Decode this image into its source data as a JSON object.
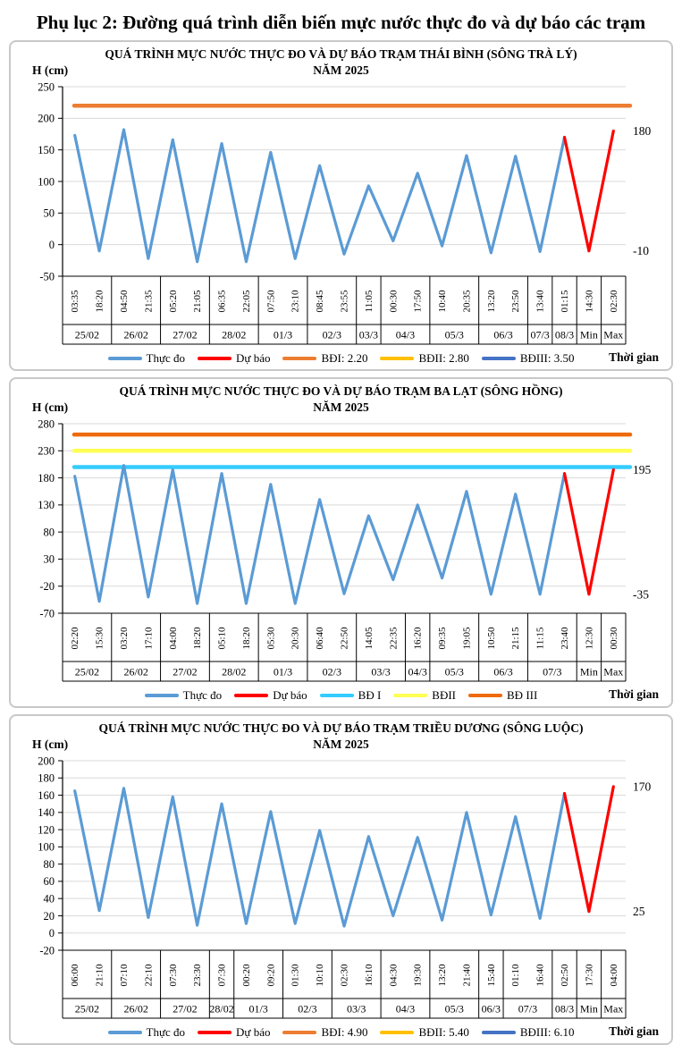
{
  "page_title": "Phụ lục 2: Đường quá trình diễn biến mực nước thực đo và dự báo các trạm",
  "chart_data": [
    {
      "type": "line",
      "title": "QUÁ TRÌNH MỰC NƯỚC THỰC ĐO VÀ DỰ BÁO TRẠM THÁI BÌNH (SÔNG TRÀ LÝ)",
      "subtitle": "NĂM 2025",
      "ylabel": "H (cm)",
      "xlabel": "Thời gian",
      "ylim": [
        -50,
        250
      ],
      "ytick_step": 50,
      "grid": true,
      "legend_position": "bottom",
      "x_time_labels": [
        "03:35",
        "18:20",
        "04:50",
        "21:35",
        "05:20",
        "21:05",
        "06:35",
        "22:05",
        "07:50",
        "23:10",
        "08:45",
        "23:55",
        "11:05",
        "00:30",
        "17:50",
        "10:40",
        "20:35",
        "13:20",
        "23:50",
        "13:40",
        "01:15",
        "14:30",
        "02:30"
      ],
      "x_date_groups": [
        {
          "label": "25/02",
          "span": 2
        },
        {
          "label": "26/02",
          "span": 2
        },
        {
          "label": "27/02",
          "span": 2
        },
        {
          "label": "28/02",
          "span": 2
        },
        {
          "label": "01/3",
          "span": 2
        },
        {
          "label": "02/3",
          "span": 2
        },
        {
          "label": "03/3",
          "span": 1
        },
        {
          "label": "04/3",
          "span": 2
        },
        {
          "label": "05/3",
          "span": 2
        },
        {
          "label": "06/3",
          "span": 2
        },
        {
          "label": "07/3",
          "span": 1
        },
        {
          "label": "08/3",
          "span": 1
        },
        {
          "label": "Min",
          "span": 1
        },
        {
          "label": "Max",
          "span": 1
        }
      ],
      "series": [
        {
          "name": "Thực đo",
          "color": "#5B9BD5",
          "values": [
            173,
            -10,
            182,
            -22,
            166,
            -27,
            160,
            -27,
            146,
            -22,
            125,
            -15,
            93,
            6,
            113,
            -2,
            141,
            -13,
            140,
            -11,
            170,
            null,
            null
          ]
        },
        {
          "name": "Dự báo",
          "color": "#FF0000",
          "values": [
            null,
            null,
            null,
            null,
            null,
            null,
            null,
            null,
            null,
            null,
            null,
            null,
            null,
            null,
            null,
            null,
            null,
            null,
            null,
            null,
            170,
            -10,
            180
          ]
        }
      ],
      "reference_lines": [
        {
          "label": "BĐI: 2.20",
          "value": 220,
          "color": "#ED7D31"
        },
        {
          "label": "BĐII: 2.80",
          "value": 280,
          "color": "#FFC000"
        },
        {
          "label": "BĐIII: 3.50",
          "value": 350,
          "color": "#4472C4"
        }
      ],
      "annotations": [
        {
          "text": "180",
          "index": 22
        },
        {
          "text": "-10",
          "index": 21
        }
      ]
    },
    {
      "type": "line",
      "title": "QUÁ TRÌNH MỰC NƯỚC THỰC ĐO VÀ DỰ BÁO TRẠM BA LẠT (SÔNG HỒNG)",
      "subtitle": "NĂM 2025",
      "ylabel": "H (cm)",
      "xlabel": "Thời gian",
      "ylim": [
        -70,
        280
      ],
      "ytick_step": 50,
      "grid": true,
      "legend_position": "bottom",
      "x_time_labels": [
        "02:20",
        "15:30",
        "03:20",
        "17:10",
        "04:00",
        "18:20",
        "05:10",
        "18:20",
        "05:30",
        "20:30",
        "06:40",
        "22:50",
        "14:05",
        "22:35",
        "16:20",
        "09:35",
        "19:05",
        "10:50",
        "21:15",
        "11:15",
        "23:40",
        "12:30",
        "00:30"
      ],
      "x_date_groups": [
        {
          "label": "25/02",
          "span": 2
        },
        {
          "label": "26/02",
          "span": 2
        },
        {
          "label": "27/02",
          "span": 2
        },
        {
          "label": "28/02",
          "span": 2
        },
        {
          "label": "01/3",
          "span": 2
        },
        {
          "label": "02/3",
          "span": 2
        },
        {
          "label": "03/3",
          "span": 2
        },
        {
          "label": "04/3",
          "span": 1
        },
        {
          "label": "05/3",
          "span": 2
        },
        {
          "label": "06/3",
          "span": 2
        },
        {
          "label": "07/3",
          "span": 2
        },
        {
          "label": "Min",
          "span": 1
        },
        {
          "label": "Max",
          "span": 1
        }
      ],
      "series": [
        {
          "name": "Thực đo",
          "color": "#5B9BD5",
          "values": [
            183,
            -48,
            203,
            -40,
            195,
            -52,
            188,
            -52,
            168,
            -52,
            140,
            -34,
            110,
            -8,
            130,
            -5,
            155,
            -35,
            150,
            -35,
            188,
            null,
            null
          ]
        },
        {
          "name": "Dự báo",
          "color": "#FF0000",
          "values": [
            null,
            null,
            null,
            null,
            null,
            null,
            null,
            null,
            null,
            null,
            null,
            null,
            null,
            null,
            null,
            null,
            null,
            null,
            null,
            null,
            188,
            -35,
            195
          ]
        }
      ],
      "reference_lines": [
        {
          "label": "BĐ I",
          "value": 200,
          "color": "#33CCFF"
        },
        {
          "label": "BĐII",
          "value": 230,
          "color": "#FFFF54"
        },
        {
          "label": "BĐ III",
          "value": 260,
          "color": "#EE6A0C"
        }
      ],
      "annotations": [
        {
          "text": "195",
          "index": 22
        },
        {
          "text": "-35",
          "index": 21
        }
      ]
    },
    {
      "type": "line",
      "title": "QUÁ TRÌNH MỰC NƯỚC THỰC ĐO VÀ DỰ BÁO TRẠM TRIỀU DƯƠNG  (SÔNG LUỘC)",
      "subtitle": "NĂM 2025",
      "ylabel": "H (cm)",
      "xlabel": "Thời gian",
      "ylim": [
        -20,
        200
      ],
      "ytick_step": 20,
      "grid": true,
      "legend_position": "bottom",
      "x_time_labels": [
        "06:00",
        "21:10",
        "07:10",
        "22:10",
        "07:30",
        "23:30",
        "07:30",
        "00:20",
        "09:20",
        "01:30",
        "10:10",
        "02:30",
        "16:10",
        "04:30",
        "19:30",
        "13:20",
        "21:40",
        "15:40",
        "01:10",
        "16:40",
        "02:50",
        "17:30",
        "04:00"
      ],
      "x_date_groups": [
        {
          "label": "25/02",
          "span": 2
        },
        {
          "label": "26/02",
          "span": 2
        },
        {
          "label": "27/02",
          "span": 2
        },
        {
          "label": "28/02",
          "span": 1
        },
        {
          "label": "01/3",
          "span": 2
        },
        {
          "label": "02/3",
          "span": 2
        },
        {
          "label": "03/3",
          "span": 2
        },
        {
          "label": "04/3",
          "span": 2
        },
        {
          "label": "05/3",
          "span": 2
        },
        {
          "label": "06/3",
          "span": 1
        },
        {
          "label": "07/3",
          "span": 2
        },
        {
          "label": "08/3",
          "span": 1
        },
        {
          "label": "Min",
          "span": 1
        },
        {
          "label": "Max",
          "span": 1
        }
      ],
      "series": [
        {
          "name": "Thực đo",
          "color": "#5B9BD5",
          "values": [
            165,
            26,
            168,
            18,
            158,
            9,
            150,
            11,
            141,
            11,
            119,
            8,
            112,
            20,
            111,
            15,
            140,
            21,
            135,
            17,
            162,
            null,
            null
          ]
        },
        {
          "name": "Dự báo",
          "color": "#FF0000",
          "values": [
            null,
            null,
            null,
            null,
            null,
            null,
            null,
            null,
            null,
            null,
            null,
            null,
            null,
            null,
            null,
            null,
            null,
            null,
            null,
            null,
            162,
            25,
            170
          ]
        }
      ],
      "reference_lines": [
        {
          "label": "BĐI: 4.90",
          "value": 490,
          "color": "#ED7D31"
        },
        {
          "label": "BĐII: 5.40",
          "value": 540,
          "color": "#FFC000"
        },
        {
          "label": "BĐIII: 6.10",
          "value": 610,
          "color": "#4472C4"
        }
      ],
      "annotations": [
        {
          "text": "170",
          "index": 22
        },
        {
          "text": "25",
          "index": 21
        }
      ]
    }
  ]
}
